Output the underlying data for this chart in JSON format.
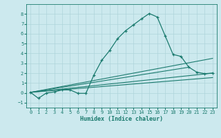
{
  "xlabel": "Humidex (Indice chaleur)",
  "bg_color": "#cce9ee",
  "grid_color": "#aed4da",
  "line_color": "#1a7a6e",
  "xlim": [
    -0.5,
    23.5
  ],
  "ylim": [
    -1.5,
    9.0
  ],
  "xticks": [
    0,
    1,
    2,
    3,
    4,
    5,
    6,
    7,
    8,
    9,
    10,
    11,
    12,
    13,
    14,
    15,
    16,
    17,
    18,
    19,
    20,
    21,
    22,
    23
  ],
  "yticks": [
    -1,
    0,
    1,
    2,
    3,
    4,
    5,
    6,
    7,
    8
  ],
  "main_x": [
    0,
    1,
    2,
    3,
    4,
    5,
    6,
    7,
    8,
    9,
    10,
    11,
    12,
    13,
    14,
    15,
    16,
    17,
    18,
    19,
    20,
    21,
    22,
    23
  ],
  "main_y": [
    0.05,
    -0.55,
    -0.02,
    0.1,
    0.3,
    0.3,
    -0.05,
    -0.05,
    1.8,
    3.3,
    4.3,
    5.5,
    6.3,
    6.9,
    7.5,
    8.05,
    7.7,
    5.8,
    3.9,
    3.7,
    2.6,
    2.1,
    1.95,
    2.0
  ],
  "line2_x": [
    0,
    23
  ],
  "line2_y": [
    0.05,
    2.0
  ],
  "line3_x": [
    0,
    23
  ],
  "line3_y": [
    0.05,
    3.5
  ],
  "line4_x": [
    0,
    20
  ],
  "line4_y": [
    0.05,
    2.6
  ],
  "line5_x": [
    0,
    23
  ],
  "line5_y": [
    0.05,
    1.55
  ]
}
